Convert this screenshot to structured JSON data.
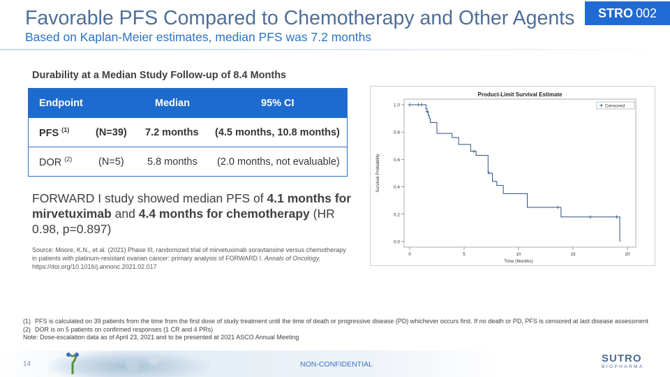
{
  "header": {
    "title": "Favorable PFS Compared to Chemotherapy and Other Agents",
    "subtitle": "Based on Kaplan-Meier estimates, median PFS was 7.2 months",
    "badge_bold": "STRO",
    "badge_num": "002"
  },
  "table": {
    "heading": "Durability at a Median Study Follow-up of 8.4 Months",
    "headers": [
      "Endpoint",
      "Median",
      "95% CI"
    ],
    "rows": [
      {
        "endpoint": "PFS",
        "ref": "(1)",
        "n": "(N=39)",
        "median": "7.2 months",
        "ci": "(4.5 months, 10.8 months)"
      },
      {
        "endpoint": "DOR",
        "ref": "(2)",
        "n": "(N=5)",
        "median": "5.8 months",
        "ci": "(2.0 months, not evaluable)"
      }
    ]
  },
  "forward": {
    "t1": "FORWARD I study showed median PFS of ",
    "b1": "4.1 months for mirvetuximab",
    "t2": " and ",
    "b2": "4.4 months for chemotherapy",
    "t3": " (HR 0.98, p=0.897)"
  },
  "source": {
    "text": "Source: Moore, K.N., et al. (2021) Phase III, randomized trial of mirvetuximab soravtansine versus chemotherapy in patients with platinum-resistant ovarian cancer: primary analysis of FORWARD I.",
    "journal": "Annals of Oncology.",
    "doi": "https://doi.org/10.1016/j.annonc.2021.02.017"
  },
  "chart_data": {
    "type": "line",
    "title": "Product-Limit Survival Estimate",
    "xlabel": "Time (Months)",
    "ylabel": "Survival Probability",
    "xlim": [
      0,
      20
    ],
    "ylim": [
      0,
      1
    ],
    "xticks": [
      "0",
      "5",
      "10",
      "15",
      "20"
    ],
    "yticks": [
      "0.0",
      "0.2",
      "0.4",
      "0.6",
      "0.8",
      "1.0"
    ],
    "legend": "Censored",
    "legend_position": "top-right",
    "color": "#2a4f7e",
    "steps": [
      {
        "x": 0,
        "y": 1.0
      },
      {
        "x": 1.5,
        "y": 0.97
      },
      {
        "x": 1.6,
        "y": 0.95
      },
      {
        "x": 1.7,
        "y": 0.92
      },
      {
        "x": 1.8,
        "y": 0.9
      },
      {
        "x": 1.9,
        "y": 0.87
      },
      {
        "x": 2.5,
        "y": 0.79
      },
      {
        "x": 3.9,
        "y": 0.76
      },
      {
        "x": 4.5,
        "y": 0.71
      },
      {
        "x": 5.6,
        "y": 0.66
      },
      {
        "x": 6.1,
        "y": 0.63
      },
      {
        "x": 7.2,
        "y": 0.5
      },
      {
        "x": 7.6,
        "y": 0.44
      },
      {
        "x": 8.0,
        "y": 0.41
      },
      {
        "x": 8.6,
        "y": 0.35
      },
      {
        "x": 10.8,
        "y": 0.25
      },
      {
        "x": 13.9,
        "y": 0.18
      },
      {
        "x": 19.3,
        "y": 0.0
      }
    ],
    "censored": [
      {
        "x": 0,
        "y": 1.0
      },
      {
        "x": 0.8,
        "y": 1.0
      },
      {
        "x": 1.1,
        "y": 1.0
      },
      {
        "x": 1.6,
        "y": 0.95
      },
      {
        "x": 5.9,
        "y": 0.66
      },
      {
        "x": 7.3,
        "y": 0.5
      },
      {
        "x": 13.6,
        "y": 0.25
      },
      {
        "x": 16.6,
        "y": 0.18
      },
      {
        "x": 19.0,
        "y": 0.18
      }
    ]
  },
  "footnotes": [
    {
      "num": "(1)",
      "text": "PFS is calculated on 39 patients from the time from the first dose of study treatment until the time of death or progressive disease (PD) whichever occurs first. If no death or PD, PFS is censored at last disease assessment"
    },
    {
      "num": "(2)",
      "text": "DOR is on 5 patients on confirmed responses (1 CR and 4 PRs)"
    }
  ],
  "note": "Note: Dose-escalation data as of April 23, 2021 and to be presented at 2021 ASCO Annual Meeting",
  "footer": {
    "page": "14",
    "confidentiality": "NON-CONFIDENTIAL",
    "logo_word": "SUTRO",
    "logo_sub": "BIOPHARMA"
  }
}
